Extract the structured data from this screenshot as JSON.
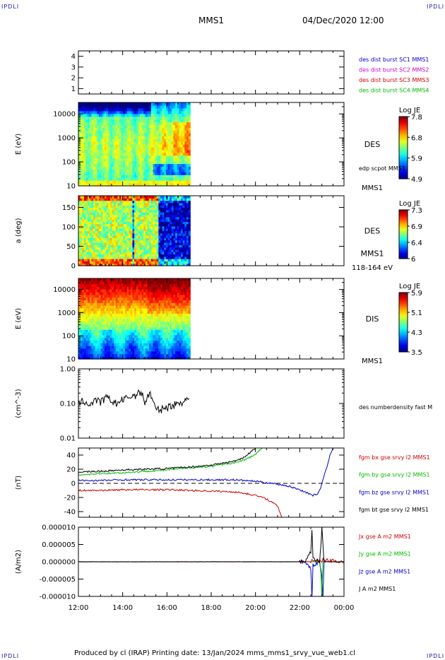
{
  "page": {
    "corner_tl": "IPDLI",
    "corner_tr": "IPDLI",
    "corner_bl": "IPDLI",
    "corner_br": "IPDLI",
    "title_left": "MMS1",
    "title_right": "04/Dec/2020 12:00",
    "footer": "Produced by cl (IRAP)   Printing date: 13/Jan/2024   mms_mms1_srvy_vue_web1.cl"
  },
  "colors": {
    "black": "#000000",
    "blue": "#0000cc",
    "magenta": "#cc00cc",
    "red": "#cc0000",
    "green": "#00bb00"
  },
  "time_axis": {
    "range_hours": [
      12,
      24
    ],
    "ticks": [
      12,
      14,
      16,
      18,
      20,
      22,
      24
    ],
    "tick_labels": [
      "12:00",
      "14:00",
      "16:00",
      "18:00",
      "20:00",
      "22:00",
      "00:00"
    ]
  },
  "chart_data": [
    {
      "id": "burst",
      "type": "line",
      "ylabel": "",
      "ylim": [
        0.5,
        4.5
      ],
      "yticks": [
        1,
        2,
        3,
        4
      ],
      "ytick_labels": [
        "1",
        "2",
        "3",
        "4"
      ],
      "legend": [
        {
          "text": "des dist burst SC1 MMS1",
          "color": "#0000cc"
        },
        {
          "text": "des dist burst SC2 MMS2",
          "color": "#cc00cc"
        },
        {
          "text": "des dist burst SC3 MMS3",
          "color": "#cc0000"
        },
        {
          "text": "des dist burst SC4 MMS4",
          "color": "#00bb00"
        }
      ],
      "series": []
    },
    {
      "id": "des-energy",
      "type": "heatmap",
      "ylabel": "E (eV)",
      "yscale": "log",
      "ylim": [
        10,
        30000
      ],
      "yticks": [
        10,
        100,
        1000,
        10000
      ],
      "ytick_labels": [
        "10",
        "100",
        "1000",
        "10000"
      ],
      "data_extent_hours": [
        12,
        17.05
      ],
      "label": "DES",
      "colorbar": {
        "title": "Log JE",
        "ticks": [
          7.8,
          6.8,
          5.9,
          4.9
        ]
      },
      "overlay_label": "edp scpot MMS1",
      "bottom_label": "MMS1"
    },
    {
      "id": "des-pitch",
      "type": "heatmap",
      "ylabel": "a (deg)",
      "ylim": [
        0,
        180
      ],
      "yticks": [
        0,
        50,
        100,
        150
      ],
      "ytick_labels": [
        "0",
        "50",
        "100",
        "150"
      ],
      "data_extent_hours": [
        12,
        17.05
      ],
      "label": "DES",
      "label2": "MMS1",
      "colorbar": {
        "title": "Log JE",
        "ticks": [
          7.3,
          6.9,
          6.4,
          6.0
        ]
      },
      "bottom_label": "118-164 eV"
    },
    {
      "id": "dis-energy",
      "type": "heatmap",
      "ylabel": "E (eV)",
      "yscale": "log",
      "ylim": [
        10,
        30000
      ],
      "yticks": [
        10,
        100,
        1000,
        10000
      ],
      "ytick_labels": [
        "10",
        "100",
        "1000",
        "10000"
      ],
      "data_extent_hours": [
        12,
        17.05
      ],
      "label": "DIS",
      "colorbar": {
        "title": "Log JE",
        "ticks": [
          5.9,
          5.1,
          4.3,
          3.5
        ]
      },
      "bottom_label": "MMS1"
    },
    {
      "id": "density",
      "type": "line",
      "ylabel": "(cm^-3)",
      "yscale": "log",
      "ylim": [
        0.01,
        1.0
      ],
      "yticks": [
        0.01,
        0.1,
        1.0
      ],
      "ytick_labels": [
        "0.01",
        "0.10",
        "1.00"
      ],
      "legend": [
        {
          "text": "des numberdensity fast M",
          "color": "#000000"
        }
      ],
      "series": [
        {
          "color": "#000000",
          "x": [
            12.0,
            12.25,
            12.5,
            12.75,
            13.0,
            13.25,
            13.5,
            13.75,
            14.0,
            14.25,
            14.5,
            14.75,
            14.9,
            15.0,
            15.1,
            15.25,
            15.5,
            15.75,
            16.0,
            16.25,
            16.5,
            16.75,
            17.0
          ],
          "y": [
            0.1,
            0.12,
            0.09,
            0.13,
            0.11,
            0.15,
            0.12,
            0.1,
            0.13,
            0.15,
            0.17,
            0.2,
            0.22,
            0.09,
            0.15,
            0.2,
            0.065,
            0.07,
            0.08,
            0.09,
            0.1,
            0.12,
            0.14
          ]
        }
      ]
    },
    {
      "id": "fgm",
      "type": "line",
      "ylabel": "(nT)",
      "ylim": [
        -48,
        50
      ],
      "yticks": [
        -40,
        -20,
        0,
        20,
        40
      ],
      "ytick_labels": [
        "-40",
        "-20",
        "0",
        "20",
        "40"
      ],
      "zero_line": true,
      "legend": [
        {
          "text": "fgm bx gse srvy l2 MMS1",
          "color": "#cc0000"
        },
        {
          "text": "fgm by gse srvy l2 MMS1",
          "color": "#00bb00"
        },
        {
          "text": "fgm bz gse srvy l2 MMS1",
          "color": "#0000cc"
        },
        {
          "text": "fgm bt gse srvy l2 MMS1",
          "color": "#000000"
        }
      ],
      "series": [
        {
          "color": "#cc0000",
          "x": [
            12.0,
            13.0,
            14.0,
            15.0,
            16.0,
            17.0,
            18.0,
            19.0,
            19.5,
            20.0,
            20.5,
            21.0,
            21.2
          ],
          "y": [
            -10,
            -10,
            -9,
            -9,
            -9,
            -10,
            -11,
            -12,
            -14,
            -17,
            -22,
            -32,
            -50
          ]
        },
        {
          "color": "#00bb00",
          "x": [
            12.0,
            13.0,
            14.0,
            15.0,
            16.0,
            17.0,
            18.0,
            19.0,
            19.5,
            20.0,
            20.3
          ],
          "y": [
            12,
            14,
            15,
            17,
            19,
            22,
            24,
            29,
            33,
            41,
            50
          ]
        },
        {
          "color": "#0000cc",
          "x": [
            12.0,
            13.0,
            14.0,
            15.0,
            16.0,
            17.0,
            18.0,
            19.0,
            19.5,
            20.0,
            20.5,
            21.0,
            21.5,
            22.0,
            22.3,
            22.6,
            22.8,
            22.9,
            23.0,
            23.2,
            23.4,
            23.5
          ],
          "y": [
            4,
            4,
            5,
            5,
            5,
            5,
            5,
            5,
            4,
            3,
            1,
            -1,
            -4,
            -9,
            -13,
            -17,
            -15,
            -10,
            0,
            20,
            43,
            50
          ]
        },
        {
          "color": "#000000",
          "x": [
            12.0,
            13.0,
            14.0,
            15.0,
            16.0,
            17.0,
            18.0,
            19.0,
            19.5,
            19.8,
            20.0
          ],
          "y": [
            16,
            17,
            19,
            20,
            21,
            23,
            26,
            31,
            37,
            45,
            50
          ]
        }
      ]
    },
    {
      "id": "current",
      "type": "line",
      "ylabel": "(A/m2)",
      "ylim": [
        -1e-05,
        1e-05
      ],
      "yticks": [
        -1e-05,
        -5e-06,
        0,
        5e-06,
        1e-05
      ],
      "ytick_labels": [
        "-0.000010",
        "-0.000005",
        "0.000000",
        "0.000005",
        "0.000010"
      ],
      "legend": [
        {
          "text": "Jx gse A m2 MMS1",
          "color": "#cc0000"
        },
        {
          "text": "Jy gse A m2 MMS1",
          "color": "#00bb00"
        },
        {
          "text": "Jz gse A m2 MMS1",
          "color": "#0000cc"
        },
        {
          "text": "J A m2 MMS1",
          "color": "#000000"
        }
      ],
      "series": [
        {
          "color": "#0000cc",
          "x": [
            12.0,
            22.0,
            22.3,
            22.5,
            22.55,
            22.6,
            22.9,
            23.0,
            23.05,
            23.1,
            24.0
          ],
          "y": [
            0,
            0,
            -5e-07,
            -2e-06,
            -1e-05,
            -1e-06,
            0,
            -4e-06,
            -1e-05,
            0,
            0
          ]
        },
        {
          "color": "#00bb00",
          "x": [
            12.0,
            22.9,
            22.95,
            23.0,
            23.05,
            24.0
          ],
          "y": [
            0,
            0,
            -3e-06,
            -1e-05,
            0,
            0
          ]
        },
        {
          "color": "#cc0000",
          "x": [
            12.0,
            22.5,
            22.55,
            23.0,
            23.05,
            24.0
          ],
          "y": [
            0,
            0,
            5e-07,
            0,
            5e-07,
            0
          ]
        },
        {
          "color": "#000000",
          "x": [
            12.0,
            22.0,
            22.3,
            22.5,
            22.55,
            22.6,
            22.9,
            22.95,
            23.0,
            23.1,
            24.0
          ],
          "y": [
            0,
            0,
            5e-07,
            3e-06,
            9.5e-06,
            1e-06,
            0,
            4e-06,
            1e-05,
            0,
            0
          ]
        }
      ]
    }
  ]
}
